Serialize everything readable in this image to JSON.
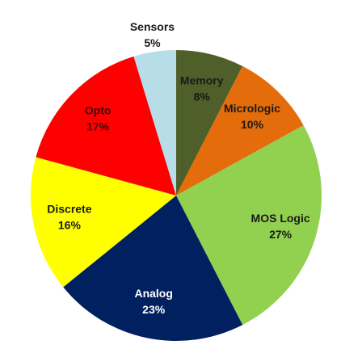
{
  "chart_data": {
    "type": "pie",
    "categories": [
      "Memory",
      "Micrologic",
      "MOS Logic",
      "Analog",
      "Discrete",
      "Opto",
      "Sensors"
    ],
    "values": [
      8,
      10,
      27,
      23,
      16,
      17,
      5
    ],
    "value_labels": [
      "8%",
      "10%",
      "27%",
      "23%",
      "16%",
      "17%",
      "5%"
    ],
    "colors": [
      "#4f5f2a",
      "#e46c0a",
      "#92d050",
      "#002060",
      "#ffff00",
      "#ff0000",
      "#b7dee8"
    ],
    "label_colors": [
      "#1a1a1a",
      "#1a1a1a",
      "#1a1a1a",
      "#ffffff",
      "#1a1a1a",
      "#3a0a0a",
      "#1a1a1a"
    ]
  }
}
